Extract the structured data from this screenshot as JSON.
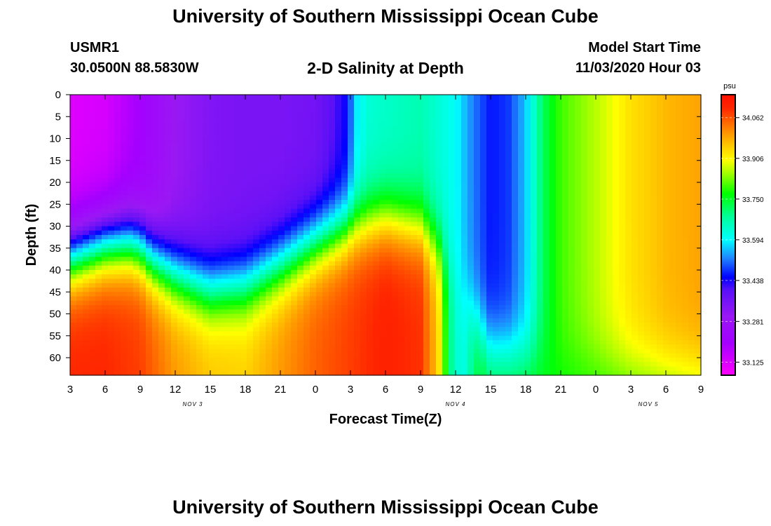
{
  "header": {
    "title": "University of Southern Mississippi Ocean Cube",
    "station": "USMR1",
    "coordinates": "30.0500N 88.5830W",
    "plot_title": "2-D Salinity at Depth",
    "model_start_label": "Model Start Time",
    "model_start_value": "11/03/2020 Hour 03"
  },
  "footer": {
    "title": "University of Southern Mississippi Ocean Cube"
  },
  "chart_data": {
    "type": "heatmap",
    "title": "2-D Salinity at Depth",
    "xlabel": "Forecast Time(Z)",
    "ylabel": "Depth (ft)",
    "x_ticks": [
      "3",
      "6",
      "9",
      "12",
      "15",
      "18",
      "21",
      "0",
      "3",
      "6",
      "9",
      "12",
      "15",
      "18",
      "21",
      "0",
      "3",
      "6",
      "9"
    ],
    "x_hours_from_start": [
      0,
      3,
      6,
      9,
      12,
      15,
      18,
      21,
      24,
      27,
      30,
      33,
      36,
      39,
      42,
      45,
      48,
      51,
      54
    ],
    "date_labels": [
      {
        "label": "NOV 3",
        "hour": 10.5
      },
      {
        "label": "NOV 4",
        "hour": 33
      },
      {
        "label": "NOV 5",
        "hour": 49.5
      }
    ],
    "y_ticks": [
      0,
      5,
      10,
      15,
      20,
      25,
      30,
      35,
      40,
      45,
      50,
      55,
      60
    ],
    "xlim_hours": [
      0,
      54
    ],
    "ylim_depth_ft": [
      0,
      64
    ],
    "colorbar": {
      "unit": "psu",
      "range": [
        33.075,
        34.15
      ],
      "ticks": [
        "34.062",
        "33.906",
        "33.750",
        "33.594",
        "33.438",
        "33.281",
        "33.125"
      ],
      "stops": [
        {
          "v": 33.075,
          "color": "#ff00ff"
        },
        {
          "v": 33.2,
          "color": "#a300ff"
        },
        {
          "v": 33.3,
          "color": "#9a18f4"
        },
        {
          "v": 33.4,
          "color": "#5a10f6"
        },
        {
          "v": 33.45,
          "color": "#0000ff"
        },
        {
          "v": 33.52,
          "color": "#1f7fff"
        },
        {
          "v": 33.594,
          "color": "#00ffff"
        },
        {
          "v": 33.68,
          "color": "#00ff9c"
        },
        {
          "v": 33.77,
          "color": "#00ff00"
        },
        {
          "v": 33.85,
          "color": "#a6ff00"
        },
        {
          "v": 33.9,
          "color": "#ffff00"
        },
        {
          "v": 33.95,
          "color": "#ffce00"
        },
        {
          "v": 34.03,
          "color": "#ff7700"
        },
        {
          "v": 34.1,
          "color": "#ff2500"
        },
        {
          "v": 34.15,
          "color": "#ff1000"
        }
      ]
    },
    "field_description": "Salinity (psu) by forecast hour and depth",
    "upper_layer_profile": {
      "hours": [
        0,
        3,
        6,
        9,
        12,
        15,
        18,
        21,
        22.5,
        23.5,
        24,
        24.5,
        25.5,
        27,
        30,
        33,
        34.5,
        36,
        37.5,
        39,
        40.5,
        42,
        45,
        48,
        51,
        54
      ],
      "salinity": [
        33.12,
        33.13,
        33.2,
        33.3,
        33.34,
        33.35,
        33.35,
        33.36,
        33.4,
        33.44,
        33.5,
        33.58,
        33.63,
        33.64,
        33.66,
        33.6,
        33.52,
        33.46,
        33.48,
        33.56,
        33.72,
        33.8,
        33.86,
        33.93,
        33.97,
        33.99
      ]
    },
    "interface_depth_ft": {
      "hours": [
        0,
        3,
        5,
        6,
        7,
        9,
        12,
        15,
        18,
        21,
        24,
        27,
        30,
        31.5,
        33,
        34.5,
        36,
        54
      ],
      "depth": [
        37,
        34,
        33.5,
        34.5,
        37.5,
        41,
        44.5,
        43.5,
        39,
        34,
        30,
        28,
        30,
        34,
        42,
        50,
        58,
        64
      ]
    },
    "bottom_layer_profile": {
      "hours": [
        0,
        3,
        6,
        9,
        12,
        15,
        18,
        21,
        24,
        27,
        30,
        31.5,
        32.5,
        33.5,
        35,
        54
      ],
      "salinity": [
        34.1,
        34.1,
        34.08,
        34.0,
        33.96,
        33.95,
        34.0,
        34.05,
        34.08,
        34.11,
        34.09,
        33.95,
        33.7,
        33.6,
        33.75,
        33.8
      ]
    }
  }
}
